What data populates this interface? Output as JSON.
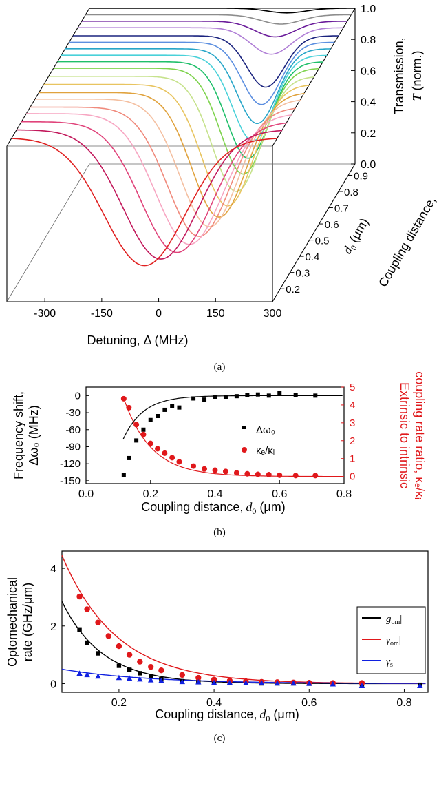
{
  "panels": {
    "a": {
      "caption": "(a)",
      "chart_data": {
        "type": "line",
        "projection": "3d-waterfall",
        "x_axis": {
          "label": "Detuning, Δ (MHz)",
          "range": [
            -400,
            300
          ],
          "ticks": [
            -300,
            -150,
            0,
            150,
            300
          ]
        },
        "z_axis": {
          "label_prefix": "Transmission,",
          "label_var": "T",
          "label_suffix": "(norm.)",
          "range": [
            0,
            1.0
          ],
          "ticks": [
            "0.0",
            "0.2",
            "0.4",
            "0.6",
            "0.8",
            "1.0"
          ]
        },
        "depth_axis": {
          "label_prefix": "Coupling distance,",
          "label_var": "d",
          "label_sub": "0",
          "label_unit": "(μm)",
          "range": [
            0.12,
            0.97
          ],
          "ticks": [
            "0.2",
            "0.3",
            "0.4",
            "0.5",
            "0.6",
            "0.7",
            "0.8",
            "0.9"
          ]
        },
        "series": [
          {
            "color": "#000000",
            "d": 0.97,
            "center": 120,
            "depth": 0.03,
            "width": 70
          },
          {
            "color": "#8c8c8c",
            "d": 0.93,
            "center": 115,
            "depth": 0.06,
            "width": 75
          },
          {
            "color": "#6a1b9a",
            "d": 0.89,
            "center": 110,
            "depth": 0.1,
            "width": 75
          },
          {
            "color": "#b07fd6",
            "d": 0.85,
            "center": 110,
            "depth": 0.17,
            "width": 75
          },
          {
            "color": "#1a237e",
            "d": 0.8,
            "center": 108,
            "depth": 0.33,
            "width": 70
          },
          {
            "color": "#5c8fe0",
            "d": 0.76,
            "center": 107,
            "depth": 0.4,
            "width": 72
          },
          {
            "color": "#26a5c8",
            "d": 0.72,
            "center": 106,
            "depth": 0.48,
            "width": 74
          },
          {
            "color": "#49d1d9",
            "d": 0.68,
            "center": 105,
            "depth": 0.55,
            "width": 76
          },
          {
            "color": "#1fbf6a",
            "d": 0.64,
            "center": 103,
            "depth": 0.62,
            "width": 80
          },
          {
            "color": "#7fd34e",
            "d": 0.6,
            "center": 100,
            "depth": 0.68,
            "width": 84
          },
          {
            "color": "#c6e28c",
            "d": 0.55,
            "center": 95,
            "depth": 0.74,
            "width": 90
          },
          {
            "color": "#e8c460",
            "d": 0.5,
            "center": 85,
            "depth": 0.78,
            "width": 96
          },
          {
            "color": "#e0a23d",
            "d": 0.45,
            "center": 75,
            "depth": 0.8,
            "width": 102
          },
          {
            "color": "#f4bfa0",
            "d": 0.41,
            "center": 60,
            "depth": 0.82,
            "width": 110
          },
          {
            "color": "#f08a7c",
            "d": 0.36,
            "center": 45,
            "depth": 0.83,
            "width": 118
          },
          {
            "color": "#f7a6c2",
            "d": 0.32,
            "center": 30,
            "depth": 0.84,
            "width": 126
          },
          {
            "color": "#e0437a",
            "d": 0.27,
            "center": 10,
            "depth": 0.84,
            "width": 134
          },
          {
            "color": "#c2185b",
            "d": 0.22,
            "center": -20,
            "depth": 0.83,
            "width": 140
          },
          {
            "color": "#e02020",
            "d": 0.17,
            "center": -50,
            "depth": 0.82,
            "width": 150
          }
        ]
      }
    },
    "b": {
      "caption": "(b)",
      "chart_data": {
        "type": "scatter",
        "x_axis": {
          "label": "Coupling distance,",
          "var": "d",
          "sub": "0",
          "unit": " (μm)",
          "range": [
            0,
            0.8
          ],
          "ticks": [
            "0.0",
            "0.2",
            "0.4",
            "0.6",
            "0.8"
          ]
        },
        "y_left": {
          "label1": "Frequency shift,",
          "label2": "Δω₀ (MHz)",
          "range": [
            -155,
            15
          ],
          "ticks": [
            "0",
            "-30",
            "-60",
            "-90",
            "-120",
            "-150"
          ]
        },
        "y_right": {
          "label1": "Extrinsic to intrinsic",
          "label2": "coupling rate ratio, κₑ/κᵢ",
          "range": [
            -0.4,
            5
          ],
          "ticks": [
            "0",
            "1",
            "2",
            "3",
            "4",
            "5"
          ],
          "color": "#e0181b"
        },
        "legend": {
          "placement": "center-right",
          "entries": [
            "Δω₀",
            "κₑ/κᵢ"
          ]
        },
        "series": [
          {
            "name": "Δω₀",
            "axis": "left",
            "color": "#000000",
            "marker": "square",
            "x": [
              0.117,
              0.133,
              0.156,
              0.178,
              0.2,
              0.222,
              0.244,
              0.267,
              0.289,
              0.333,
              0.367,
              0.4,
              0.433,
              0.467,
              0.5,
              0.533,
              0.567,
              0.6,
              0.65,
              0.711
            ],
            "y": [
              -140,
              -110,
              -79,
              -60,
              -43,
              -36,
              -25,
              -19,
              -21,
              -5,
              -7,
              -2,
              -2,
              -1,
              1,
              2,
              0,
              5,
              1,
              0
            ]
          },
          {
            "name": "κₑ/κᵢ",
            "axis": "right",
            "color": "#e0181b",
            "marker": "circle",
            "x": [
              0.117,
              0.133,
              0.156,
              0.178,
              0.2,
              0.222,
              0.244,
              0.267,
              0.289,
              0.333,
              0.367,
              0.4,
              0.433,
              0.467,
              0.5,
              0.533,
              0.567,
              0.6,
              0.65,
              0.711
            ],
            "y": [
              4.35,
              3.85,
              2.9,
              2.35,
              1.85,
              1.55,
              1.3,
              1.05,
              0.82,
              0.58,
              0.42,
              0.35,
              0.28,
              0.2,
              0.15,
              0.12,
              0.1,
              0.07,
              0.05,
              0.05
            ]
          }
        ]
      }
    },
    "c": {
      "caption": "(c)",
      "chart_data": {
        "type": "scatter",
        "x_axis": {
          "label": "Coupling distance,",
          "var": "d",
          "sub": "0",
          "unit": " (μm)",
          "range": [
            0.08,
            0.85
          ],
          "ticks": [
            "0.2",
            "0.4",
            "0.6",
            "0.8"
          ]
        },
        "y_axis": {
          "label1": "Optomechanical",
          "label2": "rate (GHz/μm)",
          "range": [
            -0.3,
            4.6
          ],
          "ticks": [
            "0",
            "2",
            "4"
          ]
        },
        "legend": {
          "placement": "right",
          "entries": [
            "|g_om|",
            "|γ_om|",
            "|γ_s|"
          ]
        },
        "series": [
          {
            "name": "|g_om|",
            "color": "#000000",
            "marker": "square",
            "x": [
              0.117,
              0.133,
              0.156,
              0.2,
              0.222,
              0.244,
              0.267,
              0.289,
              0.333,
              0.367,
              0.4,
              0.433,
              0.467,
              0.5,
              0.533,
              0.567,
              0.6,
              0.65,
              0.711,
              0.833
            ],
            "y": [
              1.88,
              1.42,
              1.05,
              0.62,
              0.48,
              0.36,
              0.26,
              0.15,
              0.08,
              0.05,
              0.03,
              0.02,
              0.02,
              0.01,
              0.01,
              0.01,
              0.0,
              0.0,
              -0.03,
              -0.04
            ],
            "fit": [
              2.85,
              0.085
            ]
          },
          {
            "name": "|γ_om|",
            "color": "#e0181b",
            "marker": "circle",
            "x": [
              0.117,
              0.133,
              0.156,
              0.178,
              0.2,
              0.222,
              0.244,
              0.267,
              0.289,
              0.333,
              0.367,
              0.4,
              0.433,
              0.467,
              0.5,
              0.533,
              0.567,
              0.6,
              0.65,
              0.711
            ],
            "y": [
              3.02,
              2.58,
              2.12,
              1.65,
              1.3,
              1.0,
              0.76,
              0.58,
              0.46,
              0.3,
              0.2,
              0.14,
              0.1,
              0.08,
              0.06,
              0.05,
              0.04,
              0.03,
              0.02,
              0.02
            ],
            "fit": [
              4.45,
              0.115
            ]
          },
          {
            "name": "|γ_s|",
            "color": "#1020e0",
            "marker": "triangle",
            "x": [
              0.117,
              0.133,
              0.156,
              0.2,
              0.222,
              0.244,
              0.267,
              0.289,
              0.333,
              0.367,
              0.4,
              0.433,
              0.467,
              0.5,
              0.533,
              0.567,
              0.6,
              0.65,
              0.711,
              0.833
            ],
            "y": [
              0.35,
              0.3,
              0.25,
              0.2,
              0.18,
              0.15,
              0.12,
              0.1,
              0.06,
              0.05,
              0.03,
              0.03,
              0.02,
              0.02,
              0.01,
              0.01,
              0.0,
              -0.02,
              -0.08,
              -0.08
            ],
            "fit": [
              0.5,
              0.18
            ]
          }
        ]
      }
    }
  }
}
